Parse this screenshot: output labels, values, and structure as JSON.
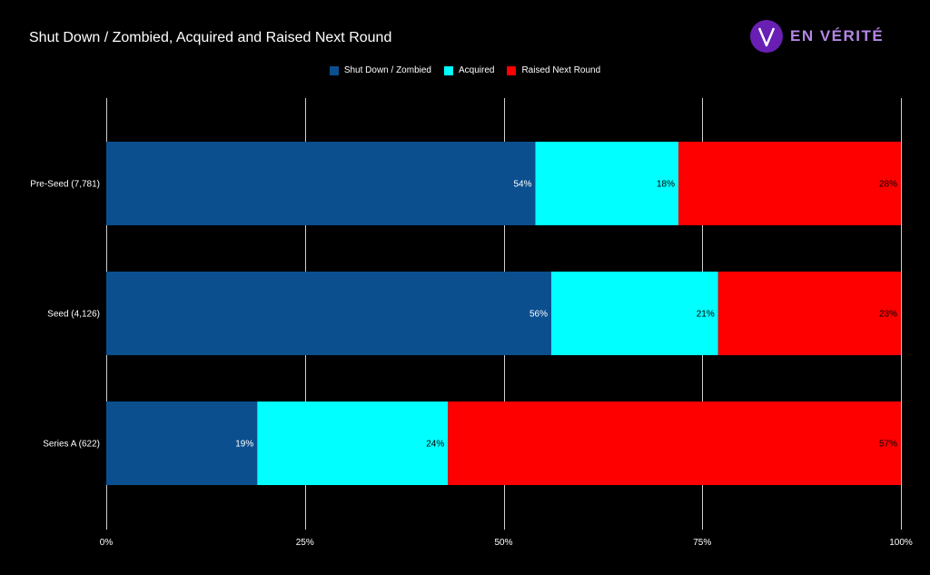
{
  "brand": {
    "logo_text": "EN VÉRITÉ",
    "logo_icon": "v-letter-icon",
    "accent": "#6a1fb4"
  },
  "chart_data": {
    "type": "bar",
    "orientation": "horizontal",
    "stacked": true,
    "normalized": true,
    "title": "Shut Down / Zombied, Acquired and Raised Next Round",
    "categories": [
      "Pre-Seed (7,781)",
      "Seed (4,126)",
      "Series A (622)"
    ],
    "series": [
      {
        "name": "Shut Down / Zombied",
        "color": "#0b4f8f",
        "values": [
          54,
          56,
          19
        ],
        "labels": [
          "54%",
          "56%",
          "19%"
        ]
      },
      {
        "name": "Acquired",
        "color": "#00ffff",
        "values": [
          18,
          21,
          24
        ],
        "labels": [
          "18%",
          "21%",
          "24%"
        ]
      },
      {
        "name": "Raised Next Round",
        "color": "#ff0000",
        "values": [
          28,
          23,
          57
        ],
        "labels": [
          "28%",
          "23%",
          "57%"
        ]
      }
    ],
    "xlim": [
      0,
      100
    ],
    "xticks": [
      0,
      25,
      50,
      75,
      100
    ],
    "xtick_labels": [
      "0%",
      "25%",
      "50%",
      "75%",
      "100%"
    ],
    "grid": true,
    "legend_position": "top-center",
    "background": "#000000"
  }
}
